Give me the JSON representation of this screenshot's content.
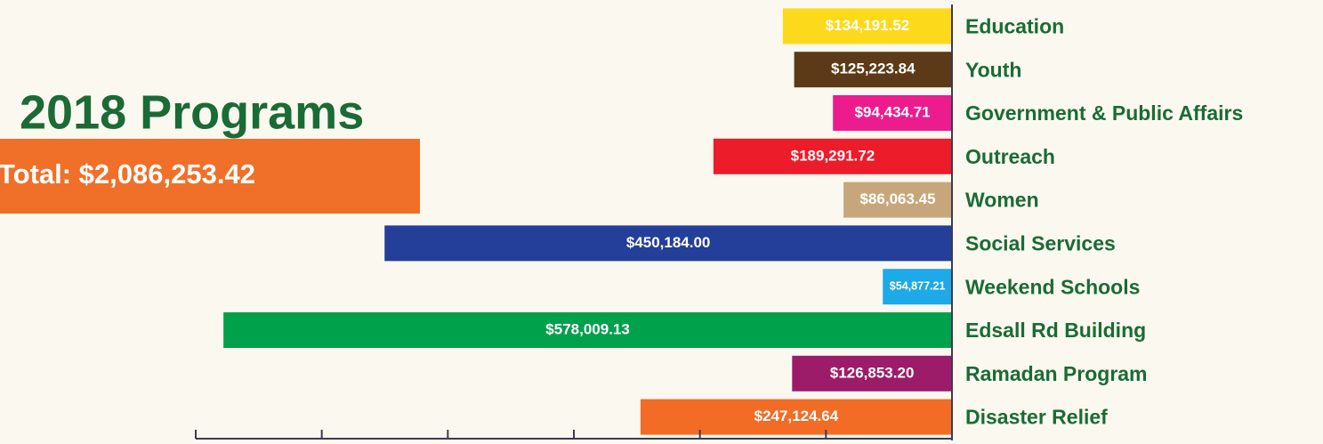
{
  "chart_data": {
    "type": "bar",
    "orientation": "horizontal",
    "title": "2018 Programs",
    "subtitle": "Total: $2,086,253.42",
    "categories": [
      "Education",
      "Youth",
      "Government & Public Affairs",
      "Outreach",
      "Women",
      "Social Services",
      "Weekend Schools",
      "Edsall Rd Building",
      "Ramadan Program",
      "Disaster Relief"
    ],
    "values": [
      134191.52,
      125223.84,
      94434.71,
      189291.72,
      86063.45,
      450184.0,
      54877.21,
      578009.13,
      126853.2,
      247124.64
    ],
    "value_labels": [
      "$134,191.52",
      "$125,223.84",
      "$94,434.71",
      "$189,291.72",
      "$86,063.45",
      "$450,184.00",
      "$54,877.21",
      "$578,009.13",
      "$126,853.20",
      "$247,124.64"
    ],
    "colors": [
      "#fdd91b",
      "#5c3a17",
      "#ec1c8e",
      "#ed1c2a",
      "#c8a67c",
      "#243f99",
      "#1ea9e9",
      "#00a14b",
      "#9d1c69",
      "#f26c26"
    ],
    "xlim": [
      0,
      600000
    ],
    "xticks": [
      0,
      100000,
      200000,
      300000,
      400000,
      500000,
      600000
    ],
    "x_reversed": true,
    "grid": false
  }
}
